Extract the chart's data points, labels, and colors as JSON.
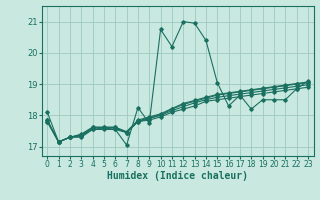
{
  "title": "",
  "xlabel": "Humidex (Indice chaleur)",
  "bg_color": "#c8e8e0",
  "grid_color": "#9ec8c0",
  "line_color": "#1a7060",
  "xlim": [
    -0.5,
    23.5
  ],
  "ylim": [
    16.7,
    21.5
  ],
  "yticks": [
    17,
    18,
    19,
    20,
    21
  ],
  "xticks": [
    0,
    1,
    2,
    3,
    4,
    5,
    6,
    7,
    8,
    9,
    10,
    11,
    12,
    13,
    14,
    15,
    16,
    17,
    18,
    19,
    20,
    21,
    22,
    23
  ],
  "lines": [
    [
      18.1,
      17.15,
      17.3,
      17.3,
      17.55,
      17.55,
      17.55,
      17.05,
      18.25,
      17.75,
      20.75,
      20.2,
      21.0,
      20.95,
      20.4,
      19.05,
      18.3,
      18.65,
      18.2,
      18.5,
      18.5,
      18.5,
      18.85,
      19.1
    ],
    [
      17.8,
      17.15,
      17.3,
      17.35,
      17.55,
      17.6,
      17.55,
      17.45,
      17.8,
      17.85,
      17.95,
      18.1,
      18.2,
      18.3,
      18.45,
      18.5,
      18.55,
      18.6,
      18.65,
      18.7,
      18.75,
      18.8,
      18.85,
      18.9
    ],
    [
      17.8,
      17.15,
      17.3,
      17.35,
      17.6,
      17.6,
      17.6,
      17.45,
      17.8,
      17.9,
      18.0,
      18.15,
      18.28,
      18.4,
      18.5,
      18.58,
      18.63,
      18.68,
      18.73,
      18.78,
      18.83,
      18.88,
      18.93,
      18.98
    ],
    [
      17.85,
      17.15,
      17.3,
      17.38,
      17.62,
      17.62,
      17.62,
      17.45,
      17.82,
      17.92,
      18.02,
      18.2,
      18.35,
      18.45,
      18.55,
      18.65,
      18.7,
      18.75,
      18.8,
      18.85,
      18.9,
      18.95,
      19.0,
      19.05
    ],
    [
      17.85,
      17.15,
      17.3,
      17.4,
      17.62,
      17.62,
      17.62,
      17.48,
      17.85,
      17.95,
      18.05,
      18.22,
      18.38,
      18.48,
      18.58,
      18.67,
      18.72,
      18.77,
      18.82,
      18.87,
      18.92,
      18.97,
      19.02,
      19.07
    ]
  ]
}
